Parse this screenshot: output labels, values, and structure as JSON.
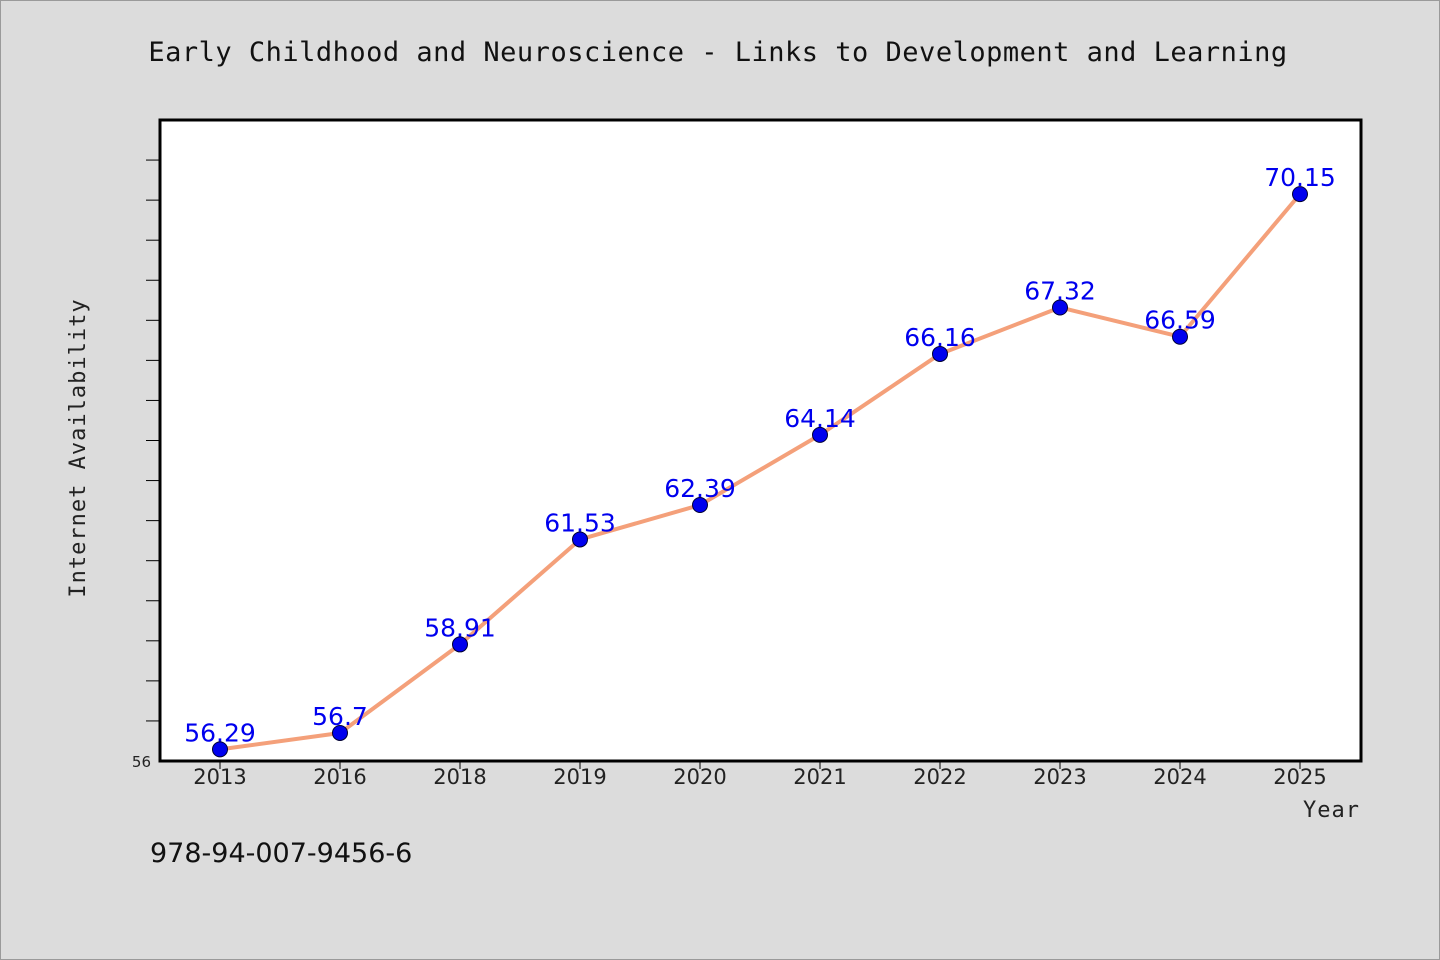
{
  "chart_data": {
    "type": "line",
    "title": "Early Childhood and Neuroscience - Links to Development and Learning",
    "xlabel": "Year",
    "ylabel": "Internet Availability",
    "categories": [
      "2013",
      "2016",
      "2018",
      "2019",
      "2020",
      "2021",
      "2022",
      "2023",
      "2024",
      "2025"
    ],
    "series": [
      {
        "values": [
          56.29,
          56.7,
          58.91,
          61.53,
          62.39,
          64.14,
          66.16,
          67.32,
          66.59,
          70.15
        ],
        "labels": [
          "56.29",
          "56.7",
          "58.91",
          "61.53",
          "62.39",
          "64.14",
          "66.16",
          "67.32",
          "66.59",
          "70.15"
        ],
        "line_color": "#f4a07a",
        "marker_color": "#0000ee"
      }
    ],
    "ylim": [
      56,
      72
    ],
    "y_tick_label": "56",
    "grid": false,
    "legend": "none"
  },
  "footer": {
    "isbn": "978-94-007-9456-6"
  },
  "colors": {
    "background": "#dcdcdc",
    "plot_background": "#ffffff",
    "line": "#f4a07a",
    "markers": "#0000ee",
    "data_labels": "#0000ee"
  }
}
